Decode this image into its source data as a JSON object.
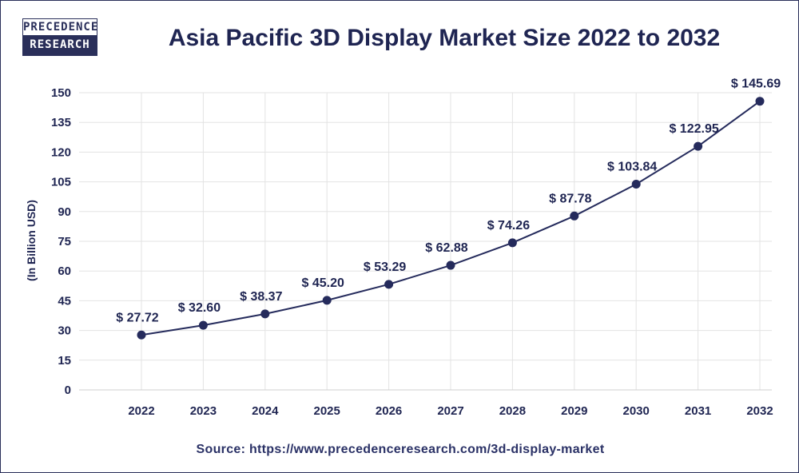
{
  "logo": {
    "line1": "PRECEDENCE",
    "line2": "RESEARCH"
  },
  "title": "Asia Pacific 3D Display Market Size 2022 to 2032",
  "source": "Source: https://www.precedenceresearch.com/3d-display-market",
  "chart_data": {
    "type": "line",
    "title": "Asia Pacific 3D Display Market Size 2022 to 2032",
    "xlabel": "",
    "ylabel": "(In Billion USD)",
    "categories": [
      "2022",
      "2023",
      "2024",
      "2025",
      "2026",
      "2027",
      "2028",
      "2029",
      "2030",
      "2031",
      "2032"
    ],
    "values": [
      27.72,
      32.6,
      38.37,
      45.2,
      53.29,
      62.88,
      74.26,
      87.78,
      103.84,
      122.95,
      145.69
    ],
    "data_labels": [
      "$ 27.72",
      "$ 32.60",
      "$ 38.37",
      "$ 45.20",
      "$ 53.29",
      "$ 62.88",
      "$ 74.26",
      "$ 87.78",
      "$ 103.84",
      "$ 122.95",
      "$ 145.69"
    ],
    "yticks": [
      0,
      15,
      30,
      45,
      60,
      75,
      90,
      105,
      120,
      135,
      150
    ],
    "ylim": [
      0,
      150
    ],
    "grid": true,
    "line_color": "#252b5c"
  }
}
